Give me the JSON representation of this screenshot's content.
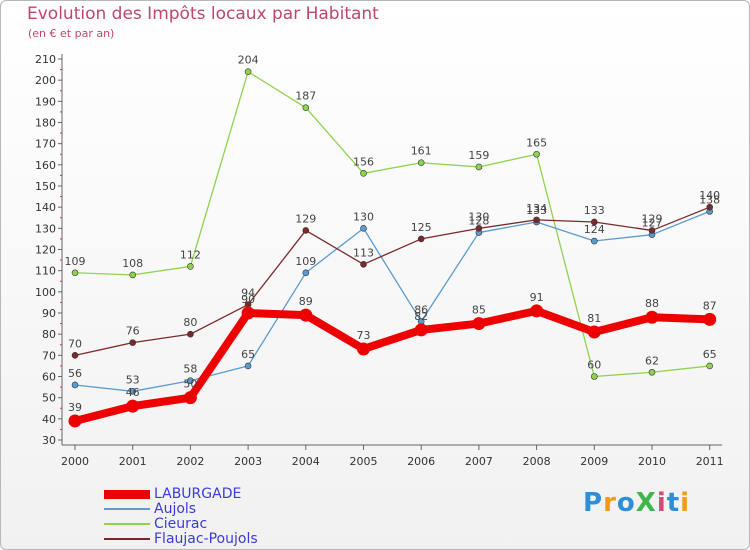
{
  "chart_data": {
    "type": "line",
    "title": "Evolution des Impôts locaux par Habitant",
    "subtitle": "(en € et par an)",
    "xlabel": "",
    "ylabel": "",
    "ylim": [
      30,
      210
    ],
    "ytick_step": 10,
    "grid": false,
    "legend_position": "bottom-left",
    "categories": [
      "2000",
      "2001",
      "2002",
      "2003",
      "2004",
      "2005",
      "2006",
      "2007",
      "2008",
      "2009",
      "2010",
      "2011"
    ],
    "series": [
      {
        "name": "Cieurac",
        "color": "#8ed34d",
        "values": [
          109,
          108,
          112,
          204,
          187,
          156,
          161,
          159,
          165,
          60,
          62,
          65
        ]
      },
      {
        "name": "Aujols",
        "color": "#5a9bd0",
        "values": [
          56,
          53,
          58,
          65,
          109,
          130,
          86,
          128,
          133,
          124,
          127,
          138
        ]
      },
      {
        "name": "Flaujac-Poujols",
        "color": "#7a2a2a",
        "values": [
          70,
          76,
          80,
          94,
          129,
          113,
          125,
          130,
          134,
          133,
          129,
          140
        ]
      },
      {
        "name": "LABURGADE",
        "color": "#ee0000",
        "values": [
          39,
          46,
          50,
          90,
          89,
          73,
          82,
          85,
          91,
          81,
          88,
          87
        ]
      }
    ],
    "label_texts": {
      "Cieurac": [
        "109",
        "108",
        "112",
        "204",
        "187",
        "156",
        "161",
        "159",
        "165",
        "60",
        "62",
        "65"
      ],
      "Aujols": [
        "56",
        "53",
        "58",
        "65",
        "109",
        "130",
        "86",
        "128",
        "133",
        "124",
        "127",
        "138"
      ],
      "Flaujac-Poujols": [
        "70",
        "76",
        "80",
        "94",
        "129",
        "113",
        "125",
        "130",
        "134",
        "133",
        "129",
        "140"
      ],
      "LABURGADE": [
        "39",
        "46",
        "50",
        "90",
        "89",
        "73",
        "82",
        "85",
        "91",
        "81",
        "88",
        "87"
      ]
    },
    "legend": [
      "LABURGADE",
      "Aujols",
      "Cieurac",
      "Flaujac-Poujols"
    ]
  },
  "brand": {
    "logo_text": "ProXiti",
    "letter_colors": [
      "#2e8fd6",
      "#f39c12",
      "#2e8fd6",
      "#3fb54b",
      "#d84a7a",
      "#2e8fd6",
      "#f39c12"
    ]
  }
}
